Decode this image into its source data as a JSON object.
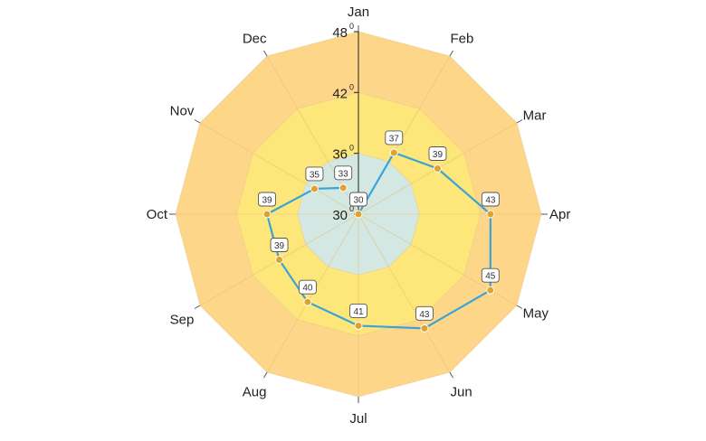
{
  "chart_data": {
    "type": "radar",
    "categories": [
      "Jan",
      "Feb",
      "Mar",
      "Apr",
      "May",
      "Jun",
      "Jul",
      "Aug",
      "Sep",
      "Oct",
      "Nov",
      "Dec"
    ],
    "values": [
      30,
      37,
      39,
      43,
      45,
      43,
      41,
      40,
      39,
      39,
      35,
      33
    ],
    "data_labels": [
      "30",
      "37",
      "39",
      "43",
      "45",
      "43",
      "41",
      "40",
      "39",
      "39",
      "35",
      "33"
    ],
    "r_ticks": [
      {
        "value": 30,
        "label": "30",
        "unit": "0"
      },
      {
        "value": 36,
        "label": "36",
        "unit": "0"
      },
      {
        "value": 42,
        "label": "42",
        "unit": "0"
      },
      {
        "value": 48,
        "label": "48",
        "unit": "0"
      }
    ],
    "rlim": [
      30,
      48
    ],
    "bands": [
      {
        "from": 30,
        "to": 36,
        "color": "#d4e8e3"
      },
      {
        "from": 36,
        "to": 42,
        "color": "#fde77a"
      },
      {
        "from": 42,
        "to": 48,
        "color": "#fdd68a"
      }
    ],
    "line_color": "#3aa3d8",
    "marker_color": "#e0a22a",
    "grid": true,
    "legend": "none"
  }
}
